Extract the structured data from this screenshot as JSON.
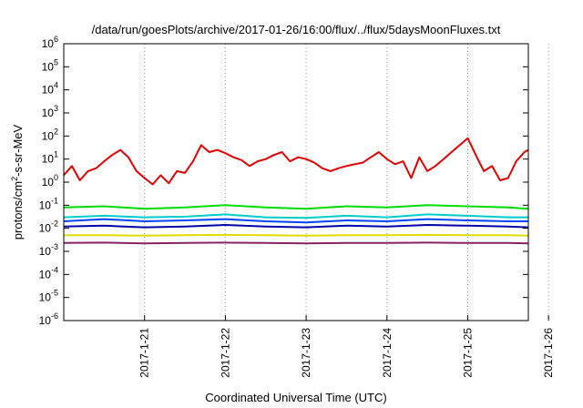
{
  "chart_data": {
    "type": "line",
    "title": "/data/run/goesPlots/archive/2017-01-26/16:00/flux/../flux/5daysMoonFluxes.txt",
    "xlabel": "Coordinated Universal Time (UTC)",
    "ylabel": "protons/cm2-s-sr-MeV",
    "ylabel_parts": {
      "prefix": "protons/cm",
      "sup": "2",
      "suffix": "-s-sr-MeV"
    },
    "x_ticks": [
      "2017-1-21",
      "2017-1-22",
      "2017-1-23",
      "2017-1-24",
      "2017-1-25",
      "2017-1-26"
    ],
    "xlim_days": [
      0,
      5.75
    ],
    "y_scale": "log",
    "ylim": [
      1e-06,
      1000000.0
    ],
    "y_ticks": [
      {
        "base": "10",
        "exp": "-6"
      },
      {
        "base": "10",
        "exp": "-5"
      },
      {
        "base": "10",
        "exp": "-4"
      },
      {
        "base": "10",
        "exp": "-3"
      },
      {
        "base": "10",
        "exp": "-2"
      },
      {
        "base": "10",
        "exp": "-1"
      },
      {
        "base": "10",
        "exp": "0"
      },
      {
        "base": "10",
        "exp": "1"
      },
      {
        "base": "10",
        "exp": "2"
      },
      {
        "base": "10",
        "exp": "3"
      },
      {
        "base": "10",
        "exp": "4"
      },
      {
        "base": "10",
        "exp": "5"
      },
      {
        "base": "10",
        "exp": "6"
      }
    ],
    "grid": "vertical-dotted",
    "series": [
      {
        "color": "#e00000",
        "x": [
          0,
          0.1,
          0.2,
          0.3,
          0.4,
          0.5,
          0.6,
          0.7,
          0.8,
          0.9,
          1.0,
          1.1,
          1.2,
          1.3,
          1.4,
          1.5,
          1.6,
          1.7,
          1.8,
          1.9,
          2.0,
          2.1,
          2.2,
          2.3,
          2.4,
          2.5,
          2.6,
          2.7,
          2.8,
          2.9,
          3.0,
          3.1,
          3.2,
          3.3,
          3.4,
          3.5,
          3.6,
          3.7,
          3.8,
          3.9,
          4.0,
          4.1,
          4.2,
          4.3,
          4.4,
          4.5,
          4.6,
          4.7,
          4.8,
          4.9,
          5.0,
          5.1,
          5.2,
          5.3,
          5.4,
          5.5,
          5.6,
          5.7,
          5.75
        ],
        "y": [
          2,
          5,
          1.2,
          3,
          4,
          8,
          15,
          25,
          12,
          3,
          1.5,
          0.8,
          2,
          0.9,
          3,
          2.5,
          8,
          40,
          20,
          25,
          18,
          12,
          9,
          5,
          8,
          10,
          15,
          20,
          8,
          12,
          10,
          7,
          4,
          3,
          4,
          5,
          6,
          7,
          12,
          20,
          10,
          6,
          8,
          1.5,
          12,
          3,
          5,
          10,
          20,
          40,
          80,
          15,
          3,
          5,
          1.2,
          1.5,
          8,
          20,
          25
        ]
      },
      {
        "color": "#00dd00",
        "x": [
          0,
          0.5,
          1.0,
          1.5,
          2.0,
          2.5,
          3.0,
          3.5,
          4.0,
          4.5,
          5.0,
          5.5,
          5.75
        ],
        "y": [
          0.08,
          0.09,
          0.07,
          0.08,
          0.1,
          0.08,
          0.07,
          0.09,
          0.08,
          0.1,
          0.09,
          0.08,
          0.07
        ]
      },
      {
        "color": "#00cccc",
        "x": [
          0,
          0.5,
          1.0,
          1.5,
          2.0,
          2.5,
          3.0,
          3.5,
          4.0,
          4.5,
          5.0,
          5.5,
          5.75
        ],
        "y": [
          0.03,
          0.035,
          0.03,
          0.032,
          0.04,
          0.03,
          0.028,
          0.035,
          0.03,
          0.04,
          0.035,
          0.03,
          0.03
        ]
      },
      {
        "color": "#0044ff",
        "x": [
          0,
          0.5,
          1.0,
          1.5,
          2.0,
          2.5,
          3.0,
          3.5,
          4.0,
          4.5,
          5.0,
          5.5,
          5.75
        ],
        "y": [
          0.02,
          0.025,
          0.02,
          0.022,
          0.025,
          0.02,
          0.018,
          0.022,
          0.02,
          0.025,
          0.022,
          0.02,
          0.02
        ]
      },
      {
        "color": "#0000aa",
        "x": [
          0,
          0.5,
          1.0,
          1.5,
          2.0,
          2.5,
          3.0,
          3.5,
          4.0,
          4.5,
          5.0,
          5.5,
          5.75
        ],
        "y": [
          0.012,
          0.013,
          0.011,
          0.012,
          0.014,
          0.012,
          0.011,
          0.013,
          0.012,
          0.014,
          0.013,
          0.012,
          0.011
        ]
      },
      {
        "color": "#dddd00",
        "x": [
          0,
          0.5,
          1.0,
          1.5,
          2.0,
          2.5,
          3.0,
          3.5,
          4.0,
          4.5,
          5.0,
          5.5,
          5.75
        ],
        "y": [
          0.005,
          0.005,
          0.0048,
          0.005,
          0.0052,
          0.005,
          0.0048,
          0.005,
          0.005,
          0.0052,
          0.005,
          0.005,
          0.0048
        ]
      },
      {
        "color": "#882266",
        "x": [
          0,
          0.5,
          1.0,
          1.5,
          2.0,
          2.5,
          3.0,
          3.5,
          4.0,
          4.5,
          5.0,
          5.5,
          5.75
        ],
        "y": [
          0.0023,
          0.0024,
          0.0022,
          0.0023,
          0.0024,
          0.0023,
          0.0022,
          0.0023,
          0.0023,
          0.0024,
          0.0023,
          0.0023,
          0.0022
        ]
      }
    ]
  }
}
